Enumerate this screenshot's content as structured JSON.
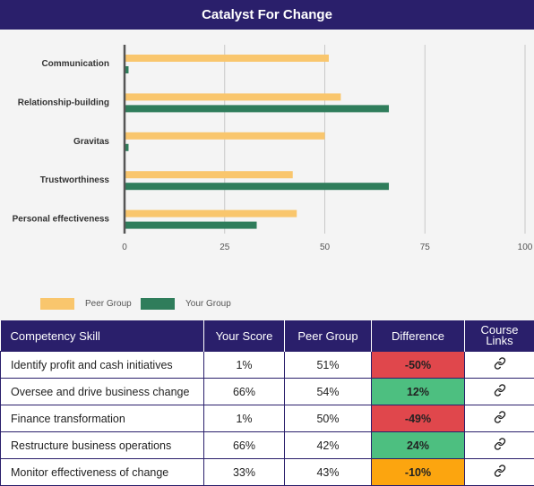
{
  "title": "Catalyst For Change",
  "colors": {
    "peer": "#f9c66d",
    "your": "#2f7d5b",
    "header": "#2a1f6b",
    "negative": "#e0474c",
    "positive": "#4dbf80",
    "warning": "#fca50f"
  },
  "chart_data": {
    "type": "bar",
    "orientation": "horizontal",
    "categories": [
      "Communication",
      "Relationship-building",
      "Gravitas",
      "Trustworthiness",
      "Personal effectiveness"
    ],
    "series": [
      {
        "name": "Peer Group",
        "values": [
          51,
          54,
          50,
          42,
          43
        ]
      },
      {
        "name": "Your Group",
        "values": [
          1,
          66,
          1,
          66,
          33
        ]
      }
    ],
    "xlim": [
      0,
      100
    ],
    "xticks": [
      0,
      25,
      50,
      75,
      100
    ],
    "grid": true,
    "legend": "bottom-left"
  },
  "legend": {
    "peer_label": "Peer Group",
    "your_label": "Your Group"
  },
  "table": {
    "headers": {
      "skill": "Competency Skill",
      "your_score": "Your Score",
      "peer_group": "Peer Group",
      "difference": "Difference",
      "course_links": "Course Links"
    },
    "rows": [
      {
        "skill": "Identify profit and cash initiatives",
        "your_score": "1%",
        "peer_group": "51%",
        "difference": "-50%",
        "status": "negative"
      },
      {
        "skill": "Oversee and drive business change",
        "your_score": "66%",
        "peer_group": "54%",
        "difference": "12%",
        "status": "positive"
      },
      {
        "skill": "Finance transformation",
        "your_score": "1%",
        "peer_group": "50%",
        "difference": "-49%",
        "status": "negative"
      },
      {
        "skill": "Restructure business operations",
        "your_score": "66%",
        "peer_group": "42%",
        "difference": "24%",
        "status": "positive"
      },
      {
        "skill": "Monitor effectiveness of change",
        "your_score": "33%",
        "peer_group": "43%",
        "difference": "-10%",
        "status": "warning"
      }
    ]
  }
}
